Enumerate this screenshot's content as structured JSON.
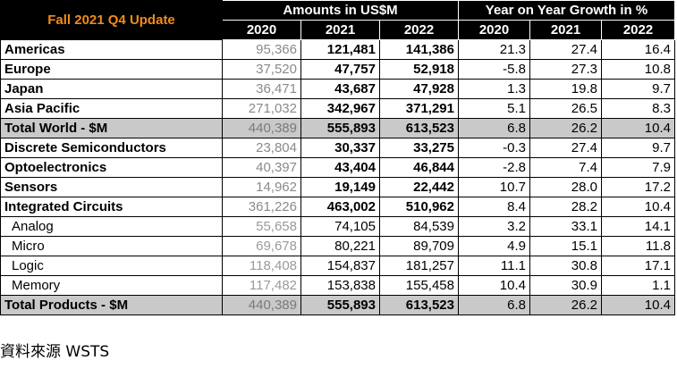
{
  "header": {
    "title": "Fall 2021 Q4 Update",
    "amounts_group": "Amounts in US$M",
    "growth_group": "Year on Year Growth in %",
    "years": [
      "2020",
      "2021",
      "2022",
      "2020",
      "2021",
      "2022"
    ]
  },
  "rows": [
    {
      "label": "Americas",
      "a2020": "95,366",
      "a2021": "121,481",
      "a2022": "141,386",
      "g2020": "21.3",
      "g2021": "27.4",
      "g2022": "16.4"
    },
    {
      "label": "Europe",
      "a2020": "37,520",
      "a2021": "47,757",
      "a2022": "52,918",
      "g2020": "-5.8",
      "g2021": "27.3",
      "g2022": "10.8"
    },
    {
      "label": "Japan",
      "a2020": "36,471",
      "a2021": "43,687",
      "a2022": "47,928",
      "g2020": "1.3",
      "g2021": "19.8",
      "g2022": "9.7"
    },
    {
      "label": "Asia Pacific",
      "a2020": "271,032",
      "a2021": "342,967",
      "a2022": "371,291",
      "g2020": "5.1",
      "g2021": "26.5",
      "g2022": "8.3"
    },
    {
      "label": "Total World - $M",
      "a2020": "440,389",
      "a2021": "555,893",
      "a2022": "613,523",
      "g2020": "6.8",
      "g2021": "26.2",
      "g2022": "10.4"
    },
    {
      "label": "Discrete Semiconductors",
      "a2020": "23,804",
      "a2021": "30,337",
      "a2022": "33,275",
      "g2020": "-0.3",
      "g2021": "27.4",
      "g2022": "9.7"
    },
    {
      "label": "Optoelectronics",
      "a2020": "40,397",
      "a2021": "43,404",
      "a2022": "46,844",
      "g2020": "-2.8",
      "g2021": "7.4",
      "g2022": "7.9"
    },
    {
      "label": "Sensors",
      "a2020": "14,962",
      "a2021": "19,149",
      "a2022": "22,442",
      "g2020": "10.7",
      "g2021": "28.0",
      "g2022": "17.2"
    },
    {
      "label": "Integrated Circuits",
      "a2020": "361,226",
      "a2021": "463,002",
      "a2022": "510,962",
      "g2020": "8.4",
      "g2021": "28.2",
      "g2022": "10.4"
    },
    {
      "label": "Analog",
      "a2020": "55,658",
      "a2021": "74,105",
      "a2022": "84,539",
      "g2020": "3.2",
      "g2021": "33.1",
      "g2022": "14.1"
    },
    {
      "label": "Micro",
      "a2020": "69,678",
      "a2021": "80,221",
      "a2022": "89,709",
      "g2020": "4.9",
      "g2021": "15.1",
      "g2022": "11.8"
    },
    {
      "label": "Logic",
      "a2020": "118,408",
      "a2021": "154,837",
      "a2022": "181,257",
      "g2020": "11.1",
      "g2021": "30.8",
      "g2022": "17.1"
    },
    {
      "label": "Memory",
      "a2020": "117,482",
      "a2021": "153,838",
      "a2022": "155,458",
      "g2020": "10.4",
      "g2021": "30.9",
      "g2022": "1.1"
    },
    {
      "label": "Total Products - $M",
      "a2020": "440,389",
      "a2021": "555,893",
      "a2022": "613,523",
      "g2020": "6.8",
      "g2021": "26.2",
      "g2022": "10.4"
    }
  ],
  "source": "資料來源 WSTS",
  "colors": {
    "title_text": "#f08c1a",
    "header_bg": "#000000",
    "total_row_bg": "#c9c9c9"
  }
}
